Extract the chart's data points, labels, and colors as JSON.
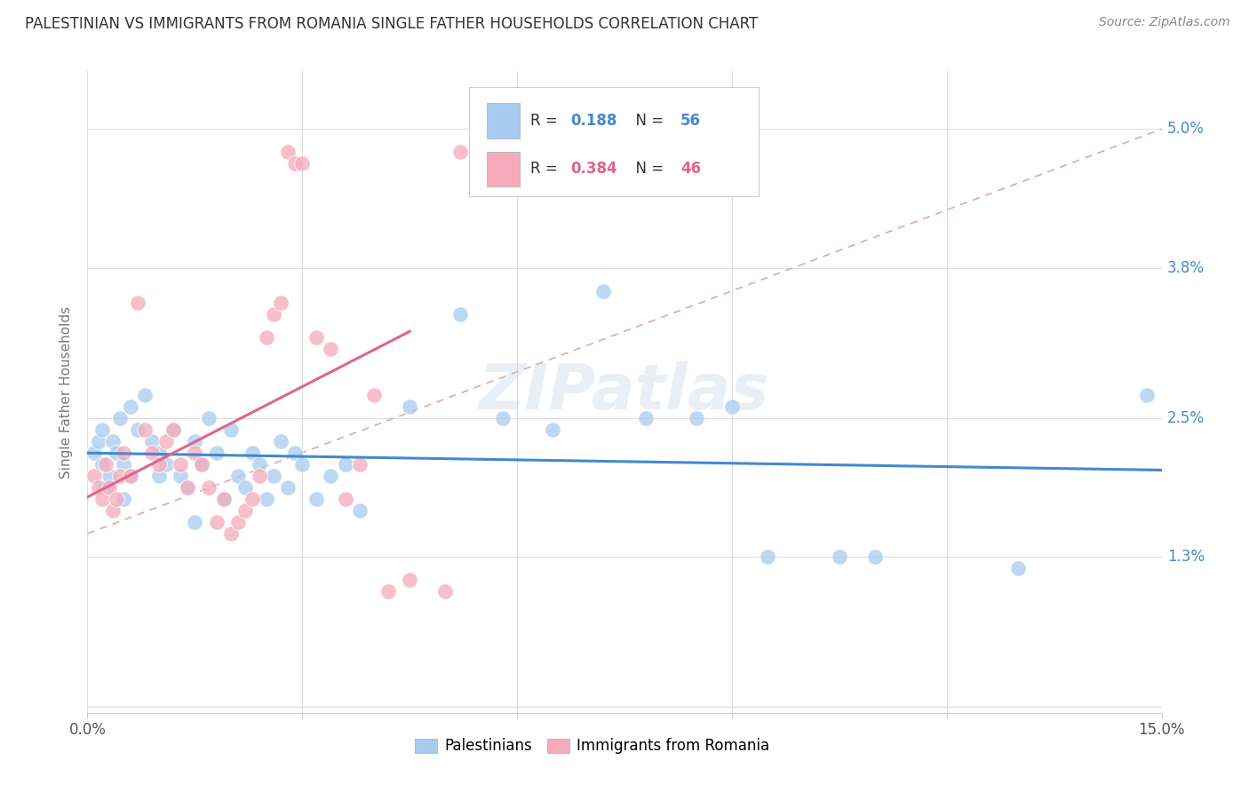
{
  "title": "PALESTINIAN VS IMMIGRANTS FROM ROMANIA SINGLE FATHER HOUSEHOLDS CORRELATION CHART",
  "source": "Source: ZipAtlas.com",
  "ylabel": "Single Father Households",
  "xlim": [
    0.0,
    15.0
  ],
  "ylim": [
    -0.05,
    5.5
  ],
  "ytick_vals": [
    0.0,
    1.3,
    2.5,
    3.8,
    5.0
  ],
  "ytick_labels": [
    "",
    "1.3%",
    "2.5%",
    "3.8%",
    "5.0%"
  ],
  "xtick_vals": [
    0.0,
    3.0,
    6.0,
    9.0,
    12.0,
    15.0
  ],
  "xtick_labels": [
    "0.0%",
    "",
    "",
    "",
    "",
    "15.0%"
  ],
  "legend_labels": [
    "Palestinians",
    "Immigrants from Romania"
  ],
  "blue_R": "0.188",
  "blue_N": "56",
  "pink_R": "0.384",
  "pink_N": "46",
  "blue_color": "#A8CCF0",
  "pink_color": "#F5AABB",
  "blue_line_color": "#4488CC",
  "pink_line_color": "#DD6688",
  "diagonal_color": "#DDAAAA",
  "watermark": "ZIPatlas",
  "background_color": "#FFFFFF",
  "grid_color": "#DDDDDD",
  "title_color": "#333333",
  "source_color": "#888888",
  "right_label_color": "#4488CC",
  "blue_points_x": [
    0.1,
    0.15,
    0.2,
    0.2,
    0.25,
    0.3,
    0.35,
    0.4,
    0.45,
    0.5,
    0.5,
    0.6,
    0.6,
    0.7,
    0.8,
    0.9,
    1.0,
    1.0,
    1.1,
    1.2,
    1.3,
    1.4,
    1.5,
    1.5,
    1.6,
    1.7,
    1.8,
    1.9,
    2.0,
    2.1,
    2.2,
    2.3,
    2.4,
    2.5,
    2.6,
    2.7,
    2.8,
    2.9,
    3.0,
    3.2,
    3.4,
    3.6,
    3.8,
    4.5,
    5.2,
    5.8,
    6.5,
    7.2,
    7.8,
    8.5,
    9.0,
    9.5,
    10.5,
    11.0,
    13.0,
    14.8
  ],
  "blue_points_y": [
    2.2,
    2.3,
    2.1,
    2.4,
    1.9,
    2.0,
    2.3,
    2.2,
    2.5,
    2.1,
    1.8,
    2.0,
    2.6,
    2.4,
    2.7,
    2.3,
    2.0,
    2.2,
    2.1,
    2.4,
    2.0,
    1.9,
    2.3,
    1.6,
    2.1,
    2.5,
    2.2,
    1.8,
    2.4,
    2.0,
    1.9,
    2.2,
    2.1,
    1.8,
    2.0,
    2.3,
    1.9,
    2.2,
    2.1,
    1.8,
    2.0,
    2.1,
    1.7,
    2.6,
    3.4,
    2.5,
    2.4,
    3.6,
    2.5,
    2.5,
    2.6,
    1.3,
    1.3,
    1.3,
    1.2,
    2.7
  ],
  "pink_points_x": [
    0.1,
    0.15,
    0.2,
    0.25,
    0.3,
    0.35,
    0.4,
    0.45,
    0.5,
    0.6,
    0.7,
    0.8,
    0.9,
    1.0,
    1.1,
    1.2,
    1.3,
    1.4,
    1.5,
    1.6,
    1.7,
    1.8,
    1.9,
    2.0,
    2.1,
    2.2,
    2.3,
    2.4,
    2.5,
    2.6,
    2.7,
    2.8,
    2.9,
    3.0,
    3.2,
    3.4,
    3.6,
    3.8,
    4.0,
    4.2,
    4.5,
    5.0,
    5.2,
    5.5,
    5.8,
    6.0
  ],
  "pink_points_y": [
    2.0,
    1.9,
    1.8,
    2.1,
    1.9,
    1.7,
    1.8,
    2.0,
    2.2,
    2.0,
    3.5,
    2.4,
    2.2,
    2.1,
    2.3,
    2.4,
    2.1,
    1.9,
    2.2,
    2.1,
    1.9,
    1.6,
    1.8,
    1.5,
    1.6,
    1.7,
    1.8,
    2.0,
    3.2,
    3.4,
    3.5,
    4.8,
    4.7,
    4.7,
    3.2,
    3.1,
    1.8,
    2.1,
    2.7,
    1.0,
    1.1,
    1.0,
    4.8,
    4.9,
    4.8,
    4.7
  ]
}
